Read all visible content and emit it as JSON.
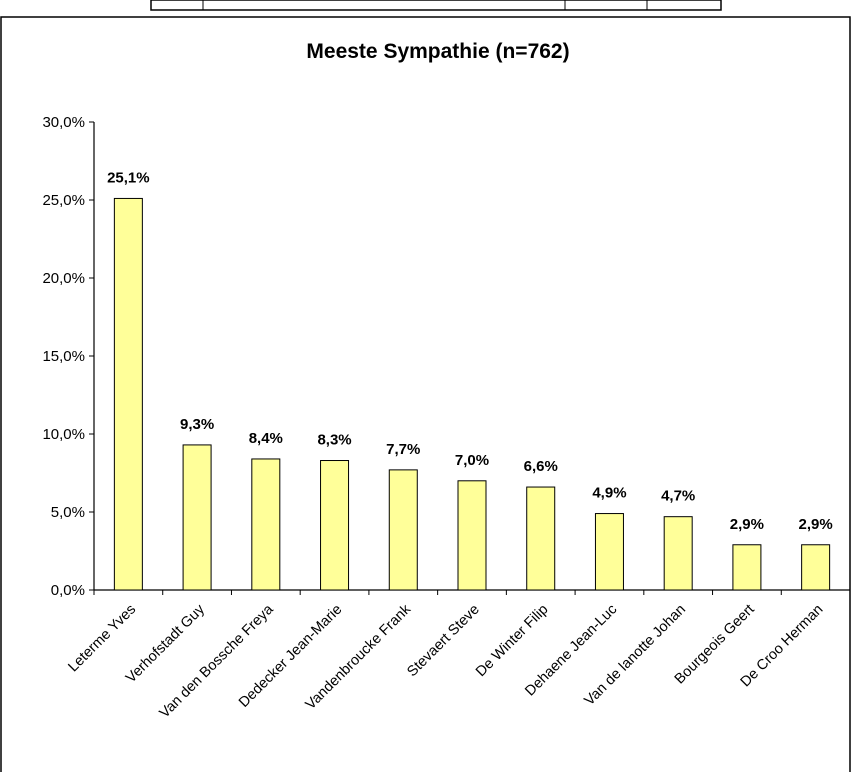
{
  "chart_data": {
    "type": "bar",
    "title": "Meeste Sympathie (n=762)",
    "categories": [
      "Leterme Yves",
      "Verhofstadt Guy",
      "Van den Bossche Freya",
      "Dedecker Jean-Marie",
      "Vandenbroucke Frank",
      "Stevaert Steve",
      "De Winter Filip",
      "Dehaene Jean-Luc",
      "Van de lanotte Johan",
      "Bourgeois Geert",
      "De Croo Herman"
    ],
    "values": [
      25.1,
      9.3,
      8.4,
      8.3,
      7.7,
      7.0,
      6.6,
      4.9,
      4.7,
      2.9,
      2.9
    ],
    "data_labels": [
      "25,1%",
      "9,3%",
      "8,4%",
      "8,3%",
      "7,7%",
      "7,0%",
      "6,6%",
      "4,9%",
      "4,7%",
      "2,9%",
      "2,9%"
    ],
    "ylim": [
      0,
      30
    ],
    "yticks": [
      0,
      5,
      10,
      15,
      20,
      25,
      30
    ],
    "ytick_labels": [
      "0,0%",
      "5,0%",
      "10,0%",
      "15,0%",
      "20,0%",
      "25,0%",
      "30,0%"
    ],
    "grid": false,
    "legend": "none",
    "colors": {
      "bar_fill": "#FFFF99",
      "bar_stroke": "#000000",
      "axis": "#000000"
    }
  }
}
